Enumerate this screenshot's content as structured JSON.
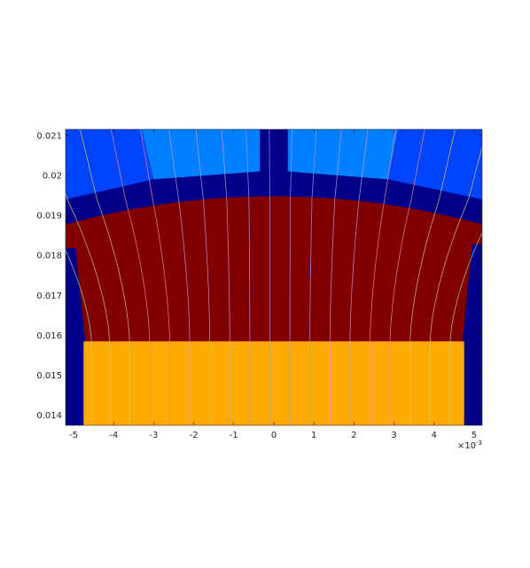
{
  "chart_data": {
    "type": "heatmap",
    "title": "",
    "xlabel": "",
    "ylabel": "",
    "x_exponent_label": "×10",
    "x_exponent_power": "-3",
    "xlim": [
      -5.2,
      5.2
    ],
    "ylim": [
      0.01375,
      0.02115
    ],
    "x_tick_values": [
      -5,
      -4,
      -3,
      -2,
      -1,
      0,
      1,
      2,
      3,
      4,
      5
    ],
    "x_tick_labels": [
      "-5",
      "-4",
      "-3",
      "-2",
      "-1",
      "0",
      "1",
      "2",
      "3",
      "4",
      "5"
    ],
    "y_tick_values": [
      0.014,
      0.015,
      0.016,
      0.017,
      0.018,
      0.019,
      0.02,
      0.021
    ],
    "y_tick_labels": [
      "0.014",
      "0.015",
      "0.016",
      "0.017",
      "0.018",
      "0.019",
      "0.02",
      "0.021"
    ],
    "grid": false,
    "legend": "none",
    "colors": {
      "background_dark_blue": "#000088",
      "stator_teeth_blue": "#0044ff",
      "stator_slot_light_blue": "#0080ff",
      "rotor_dark_red": "#800000",
      "magnet_orange": "#ffaa00",
      "flux_lines": [
        "#9a9aff",
        "#c49ad8",
        "#e88aa0",
        "#d9c47a",
        "#a8d89a"
      ]
    },
    "regions": [
      {
        "name": "stator-teeth-left",
        "color": "#0044ff"
      },
      {
        "name": "stator-slot-left",
        "color": "#0080ff"
      },
      {
        "name": "stator-slot-right",
        "color": "#0080ff"
      },
      {
        "name": "stator-teeth-right",
        "color": "#0044ff"
      },
      {
        "name": "air-gap",
        "color": "#000088"
      },
      {
        "name": "rotor-core",
        "color": "#800000"
      },
      {
        "name": "permanent-magnet",
        "color": "#ffaa00"
      }
    ],
    "flux_line_x_at_bottom": [
      -4.55,
      -4.1,
      -3.6,
      -3.1,
      -2.6,
      -2.1,
      -1.6,
      -1.1,
      -0.6,
      -0.1,
      0.4,
      0.9,
      1.4,
      1.9,
      2.4,
      2.9,
      3.4,
      3.9,
      4.4
    ]
  }
}
